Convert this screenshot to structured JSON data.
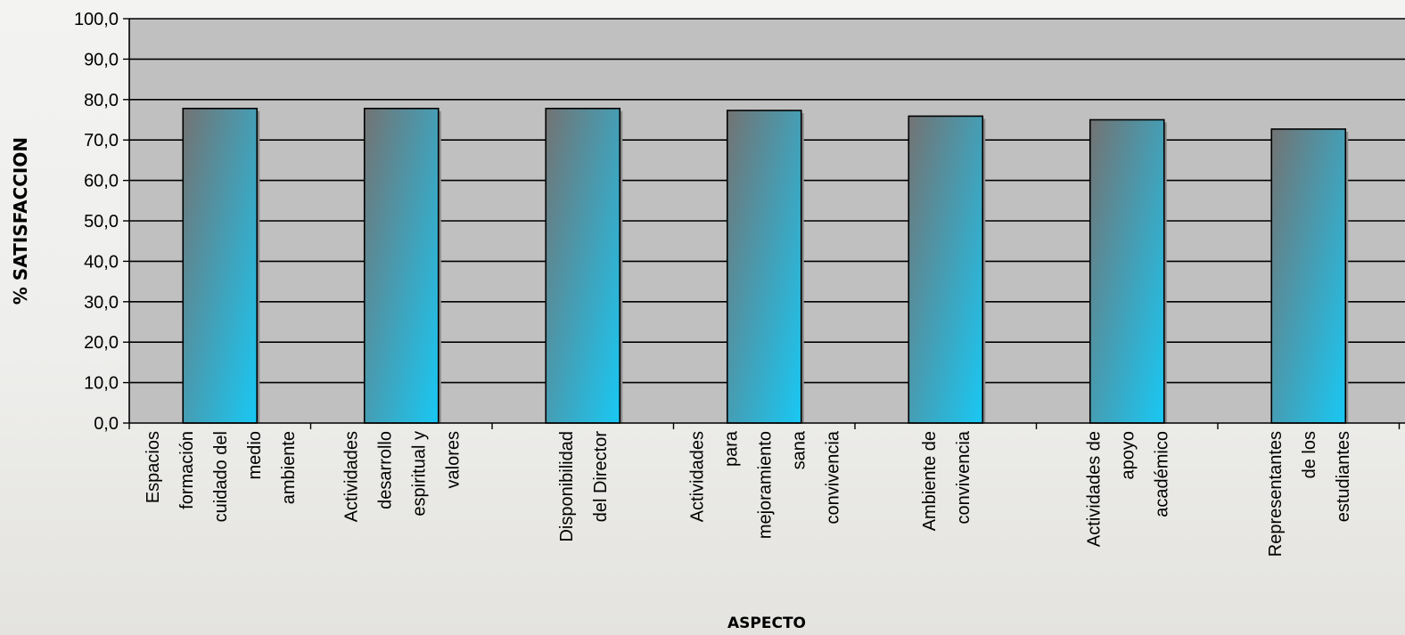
{
  "chart_data": {
    "type": "bar",
    "ylabel": "% SATISFACCION",
    "xlabel": "ASPECTO",
    "ylim": [
      0,
      100
    ],
    "ytick_step": 10,
    "ytick_labels": [
      "0,0",
      "10,0",
      "20,0",
      "30,0",
      "40,0",
      "50,0",
      "60,0",
      "70,0",
      "80,0",
      "90,0",
      "100,0"
    ],
    "grid": true,
    "legend": "none",
    "categories": [
      [
        "Espacios",
        "formación",
        "cuidado del",
        "medio",
        "ambiente"
      ],
      [
        "Actividades",
        "desarrollo",
        "espiritual y",
        "valores"
      ],
      [
        "Disponibilidad",
        "del Director"
      ],
      [
        "Actividades",
        "para",
        "mejoramiento",
        "sana",
        "convivencia"
      ],
      [
        "Ambiente de",
        "convivencia"
      ],
      [
        "Actividades de",
        "apoyo",
        "académico"
      ],
      [
        "Representantes",
        "de los",
        "estudiantes"
      ]
    ],
    "values": [
      77.8,
      77.8,
      77.8,
      77.3,
      75.9,
      75.0,
      72.7
    ],
    "colors": {
      "plot_background": "#c0c0c0",
      "bar_top": "#737373",
      "bar_bottom": "#18c8f4",
      "gridline": "#000000"
    }
  }
}
